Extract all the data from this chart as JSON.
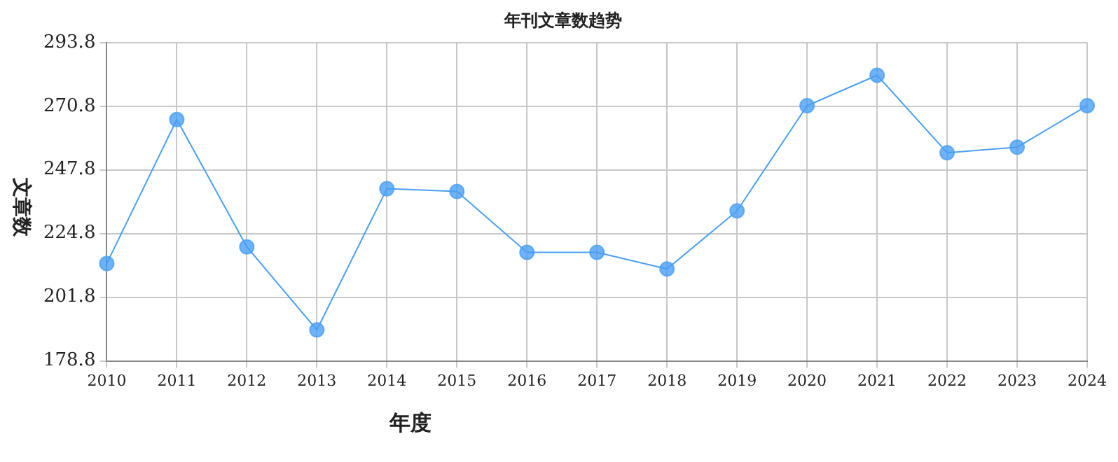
{
  "chart_data": {
    "type": "line",
    "title": "年刊文章数趋势",
    "xlabel": "年度",
    "ylabel": "文章数",
    "categories": [
      "2010",
      "2011",
      "2012",
      "2013",
      "2014",
      "2015",
      "2016",
      "2017",
      "2018",
      "2019",
      "2020",
      "2021",
      "2022",
      "2023",
      "2024"
    ],
    "series": [
      {
        "color": "#4a9ff5",
        "values": [
          214,
          266,
          220,
          190,
          241,
          240,
          218,
          218,
          212,
          233,
          271,
          282,
          254,
          256,
          271
        ]
      }
    ],
    "ylim": [
      178.8,
      293.8
    ],
    "yticks": [
      178.8,
      201.8,
      224.8,
      247.8,
      270.8,
      293.8
    ],
    "grid": true,
    "legend": false,
    "marker": "circle",
    "line_style": "solid"
  }
}
